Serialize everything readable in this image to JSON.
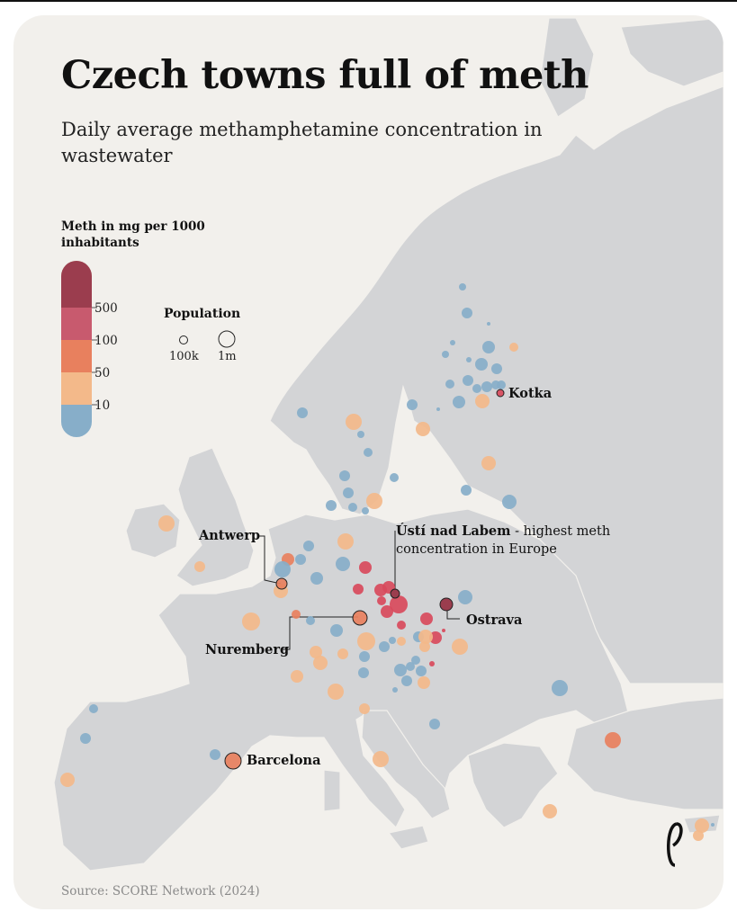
{
  "title": "Czech towns full of meth",
  "subtitle": "Daily average methamphetamine concentration in wastewater",
  "legend": {
    "title": "Meth in mg per 1000 inhabitants",
    "thresholds": [
      "500",
      "100",
      "50",
      "10"
    ],
    "colors": [
      "#9b3d4e",
      "#c85a6e",
      "#e8805e",
      "#f3b98a",
      "#87aec9"
    ]
  },
  "population_legend": {
    "title": "Population",
    "small_label": "100k",
    "large_label": "1m"
  },
  "labels": {
    "kotka": "Kotka",
    "antwerp": "Antwerp",
    "nuremberg": "Nuremberg",
    "ostrava": "Ostrava",
    "barcelona": "Barcelona",
    "usti_name": "Ústí nad Labem",
    "usti_note": " - highest meth concentration in Europe"
  },
  "source": "Source: SCORE Network (2024)",
  "colors": {
    "background": "#f2f0ec",
    "land": "#d3d4d6",
    "border": "#f2f0ec",
    "highest": "#9b3d4e",
    "high": "#d84a5c",
    "orange": "#e8805e",
    "yellow": "#f3b98a",
    "blue": "#87aec9"
  },
  "brand_icon": "publisher-logo-icon"
}
